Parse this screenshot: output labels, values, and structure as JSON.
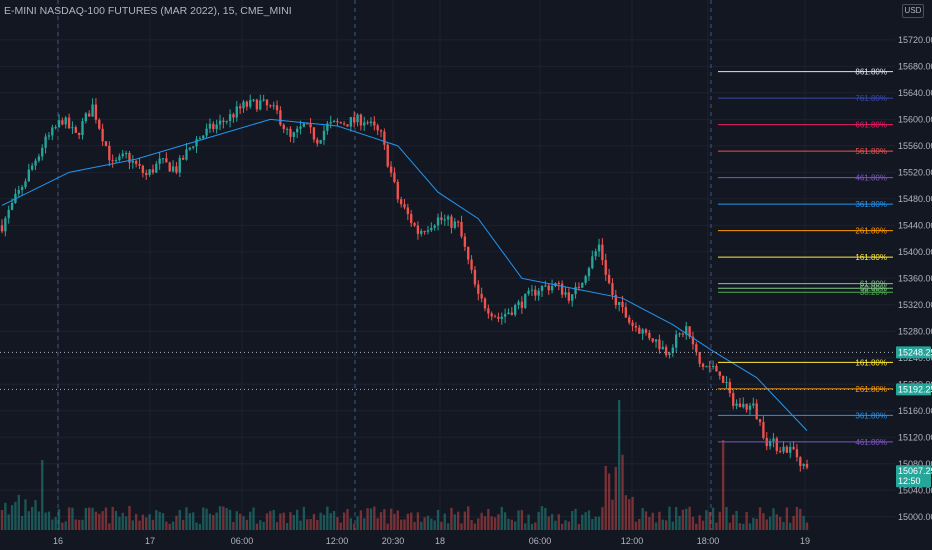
{
  "header": {
    "title": "E-MINI NASDAQ-100 FUTURES (MAR 2022), 15, CME_MINI",
    "currency": "USD"
  },
  "colors": {
    "background": "#131722",
    "grid": "#1e2230",
    "up": "#26a69a",
    "down": "#ef5350",
    "ma": "#2196f3",
    "axis_text": "#b2b5be"
  },
  "chart_data": {
    "type": "candlestick",
    "symbol": "E-MINI NASDAQ-100 FUTURES (MAR 2022)",
    "interval": "15",
    "exchange": "CME_MINI",
    "ylim": [
      14980,
      15750
    ],
    "y_ticks": [
      15000,
      15040,
      15080,
      15120,
      15160,
      15200,
      15240,
      15280,
      15320,
      15360,
      15400,
      15440,
      15480,
      15520,
      15560,
      15600,
      15640,
      15680,
      15720
    ],
    "x_labels": [
      "16",
      "17",
      "06:00",
      "12:00",
      "20:30",
      "18",
      "06:00",
      "12:00",
      "18:00",
      "19"
    ],
    "session_breaks": [
      "16",
      "12:00",
      "18:00"
    ],
    "price_path": [
      [
        0,
        15440
      ],
      [
        6,
        15500
      ],
      [
        12,
        15560
      ],
      [
        18,
        15600
      ],
      [
        22,
        15575
      ],
      [
        27,
        15620
      ],
      [
        33,
        15530
      ],
      [
        37,
        15545
      ],
      [
        43,
        15515
      ],
      [
        47,
        15535
      ],
      [
        52,
        15525
      ],
      [
        57,
        15565
      ],
      [
        62,
        15585
      ],
      [
        67,
        15600
      ],
      [
        72,
        15620
      ],
      [
        77,
        15625
      ],
      [
        82,
        15610
      ],
      [
        86,
        15570
      ],
      [
        90,
        15590
      ],
      [
        94,
        15570
      ],
      [
        97,
        15590
      ],
      [
        102,
        15595
      ],
      [
        108,
        15600
      ],
      [
        113,
        15575
      ],
      [
        118,
        15480
      ],
      [
        124,
        15430
      ],
      [
        130,
        15450
      ],
      [
        136,
        15440
      ],
      [
        142,
        15330
      ],
      [
        148,
        15300
      ],
      [
        154,
        15320
      ],
      [
        160,
        15345
      ],
      [
        165,
        15350
      ],
      [
        170,
        15330
      ],
      [
        174,
        15370
      ],
      [
        178,
        15410
      ],
      [
        182,
        15330
      ],
      [
        188,
        15290
      ],
      [
        194,
        15270
      ],
      [
        198,
        15250
      ],
      [
        204,
        15285
      ],
      [
        208,
        15230
      ],
      [
        214,
        15220
      ],
      [
        218,
        15170
      ],
      [
        224,
        15165
      ],
      [
        228,
        15115
      ],
      [
        232,
        15105
      ],
      [
        236,
        15100
      ],
      [
        240,
        15070
      ]
    ],
    "ma_path": [
      [
        0,
        15470
      ],
      [
        20,
        15520
      ],
      [
        40,
        15540
      ],
      [
        60,
        15570
      ],
      [
        80,
        15600
      ],
      [
        100,
        15590
      ],
      [
        118,
        15560
      ],
      [
        130,
        15490
      ],
      [
        142,
        15450
      ],
      [
        155,
        15360
      ],
      [
        170,
        15345
      ],
      [
        185,
        15330
      ],
      [
        200,
        15290
      ],
      [
        212,
        15250
      ],
      [
        225,
        15210
      ],
      [
        240,
        15130
      ]
    ],
    "last_price": "15067.25",
    "countdown": "12:50",
    "horizontal_lines": [
      {
        "price": "15248.25",
        "color": "#a5d6a7"
      },
      {
        "price": "15192.25",
        "color": "#a5d6a7"
      }
    ],
    "fib_levels": [
      {
        "label": "861.80%",
        "price": 15672,
        "color": "#e0e3eb"
      },
      {
        "label": "761.80%",
        "price": 15632,
        "color": "#3949ab"
      },
      {
        "label": "661.80%",
        "price": 15592,
        "color": "#e91e63"
      },
      {
        "label": "561.80%",
        "price": 15552,
        "color": "#ef5350"
      },
      {
        "label": "461.80%",
        "price": 15512,
        "color": "#7e57c2"
      },
      {
        "label": "361.80%",
        "price": 15472,
        "color": "#2196f3"
      },
      {
        "label": "261.80%",
        "price": 15432,
        "color": "#ff9800"
      },
      {
        "label": "161.80%",
        "price": 15392,
        "color": "#ffeb3b"
      },
      {
        "label": "61.80%",
        "price": 15352,
        "color": "#81c784"
      },
      {
        "label": "50.00%",
        "price": 15345,
        "color": "#81c784"
      },
      {
        "label": "38.20%",
        "price": 15339,
        "color": "#4caf50"
      },
      {
        "label": "161.80%",
        "price": 15233,
        "color": "#ffeb3b"
      },
      {
        "label": "261.80%",
        "price": 15193,
        "color": "#ff9800"
      },
      {
        "label": "361.80%",
        "price": 15153,
        "color": "#2196f3"
      },
      {
        "label": "461.80%",
        "price": 15113,
        "color": "#7e57c2"
      }
    ]
  }
}
